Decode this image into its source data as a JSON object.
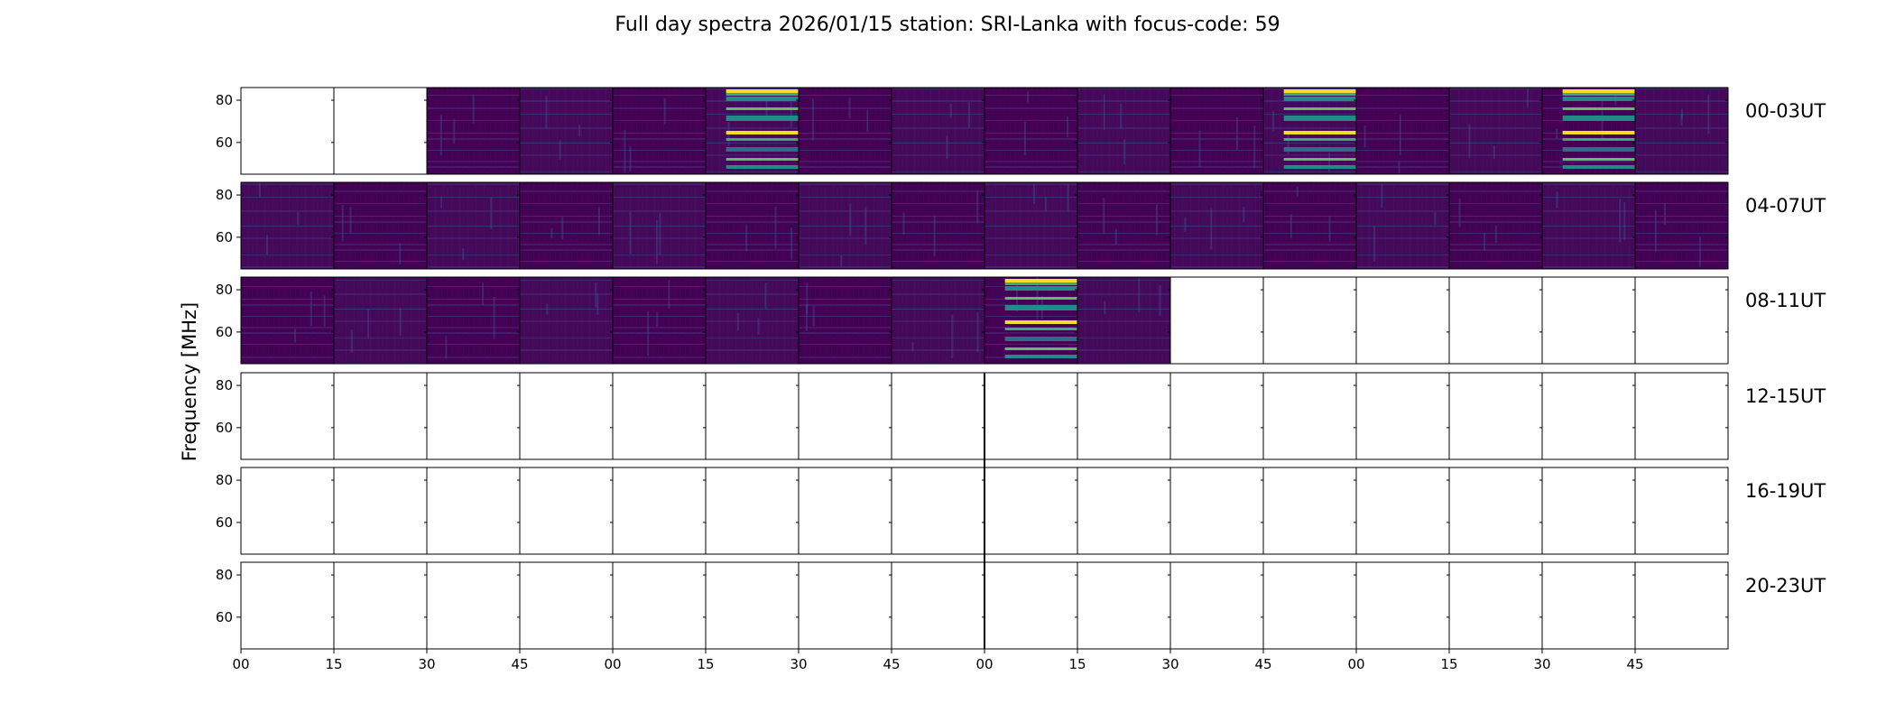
{
  "chart_data": {
    "type": "heatmap",
    "title": "Full day spectra 2026/01/15 station: SRI-Lanka with focus-code: 59",
    "ylabel": "Frequency [MHz]",
    "xlabel": "",
    "x_tick_labels": [
      "00",
      "15",
      "30",
      "45",
      "00",
      "15",
      "30",
      "45",
      "00",
      "15",
      "30",
      "45",
      "00",
      "15",
      "30",
      "45"
    ],
    "y_tick_labels": [
      "80",
      "60"
    ],
    "y_ticks": [
      80,
      60
    ],
    "ylim": [
      45,
      86
    ],
    "colormap": "viridis",
    "colors": {
      "low": "#440154",
      "mid": "#21918c",
      "high": "#fde725"
    },
    "rows": [
      {
        "label": "00-03UT",
        "panels": [
          "empty",
          "empty",
          "data",
          "data",
          "data",
          "data_burst",
          "data",
          "data",
          "data",
          "data",
          "data",
          "data_burst",
          "data",
          "data",
          "data_burst",
          "data"
        ]
      },
      {
        "label": "04-07UT",
        "panels": [
          "data",
          "data",
          "data",
          "data",
          "data",
          "data",
          "data",
          "data",
          "data",
          "data",
          "data",
          "data",
          "data",
          "data",
          "data",
          "data"
        ]
      },
      {
        "label": "08-11UT",
        "panels": [
          "data",
          "data",
          "data",
          "data",
          "data",
          "data",
          "data",
          "data",
          "data_burst",
          "data",
          "empty",
          "empty",
          "empty",
          "empty",
          "empty",
          "empty"
        ]
      },
      {
        "label": "12-15UT",
        "panels": [
          "empty",
          "empty",
          "empty",
          "empty",
          "empty",
          "empty",
          "empty",
          "empty",
          "empty",
          "empty",
          "empty",
          "empty",
          "empty",
          "empty",
          "empty",
          "empty"
        ]
      },
      {
        "label": "16-19UT",
        "panels": [
          "empty",
          "empty",
          "empty",
          "empty",
          "empty",
          "empty",
          "empty",
          "empty",
          "empty",
          "empty",
          "empty",
          "empty",
          "empty",
          "empty",
          "empty",
          "empty"
        ]
      },
      {
        "label": "20-23UT",
        "panels": [
          "empty",
          "empty",
          "empty",
          "empty",
          "empty",
          "empty",
          "empty",
          "empty",
          "empty",
          "empty",
          "empty",
          "empty",
          "empty",
          "empty",
          "empty",
          "empty"
        ]
      }
    ]
  }
}
